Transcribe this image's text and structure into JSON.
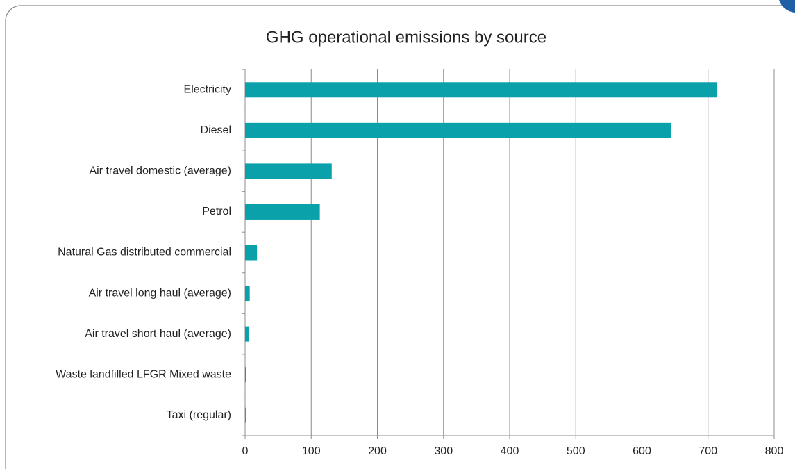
{
  "chart_data": {
    "type": "barh",
    "title": "GHG operational emissions by source",
    "categories": [
      "Electricity",
      "Diesel",
      "Air travel domestic (average)",
      "Petrol",
      "Natural Gas distributed commercial",
      "Air travel long haul (average)",
      "Air travel short haul (average)",
      "Waste landfilled LFGR Mixed waste",
      "Taxi (regular)"
    ],
    "values": [
      714,
      644,
      131,
      113,
      18,
      7,
      6,
      2,
      1
    ],
    "color": "#0aa1ab",
    "xlim": [
      0,
      800
    ],
    "xticks": [
      0,
      100,
      200,
      300,
      400,
      500,
      600,
      700,
      800
    ],
    "grid": true
  }
}
